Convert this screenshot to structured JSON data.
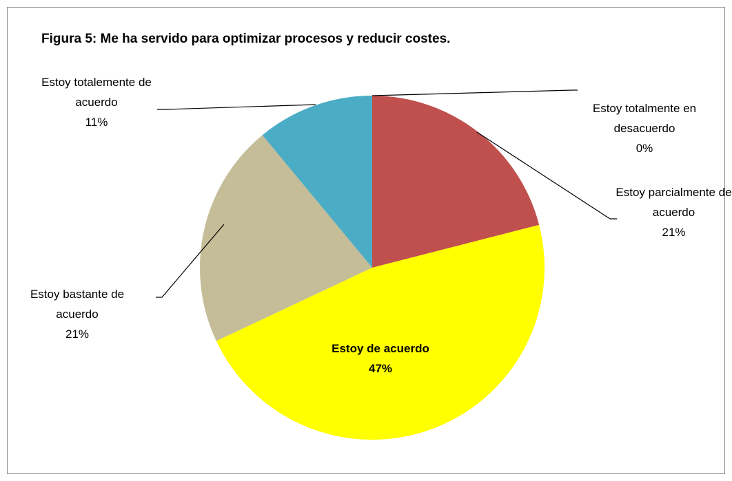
{
  "chart_data": {
    "type": "pie",
    "title": "Figura 5: Me ha servido para optimizar procesos y reducir costes.",
    "categories": [
      "Estoy totalmente en desacuerdo",
      "Estoy parcialmente de acuerdo",
      "Estoy de acuerdo",
      "Estoy bastante de acuerdo",
      "Estoy totalemente de acuerdo"
    ],
    "values": [
      0,
      21,
      47,
      21,
      11
    ],
    "value_labels": [
      "0%",
      "21%",
      "47%",
      "21%",
      "11%"
    ],
    "colors": [
      "#4f81bd",
      "#c0504d",
      "#ffff00",
      "#c4bd97",
      "#4bacc6"
    ]
  }
}
